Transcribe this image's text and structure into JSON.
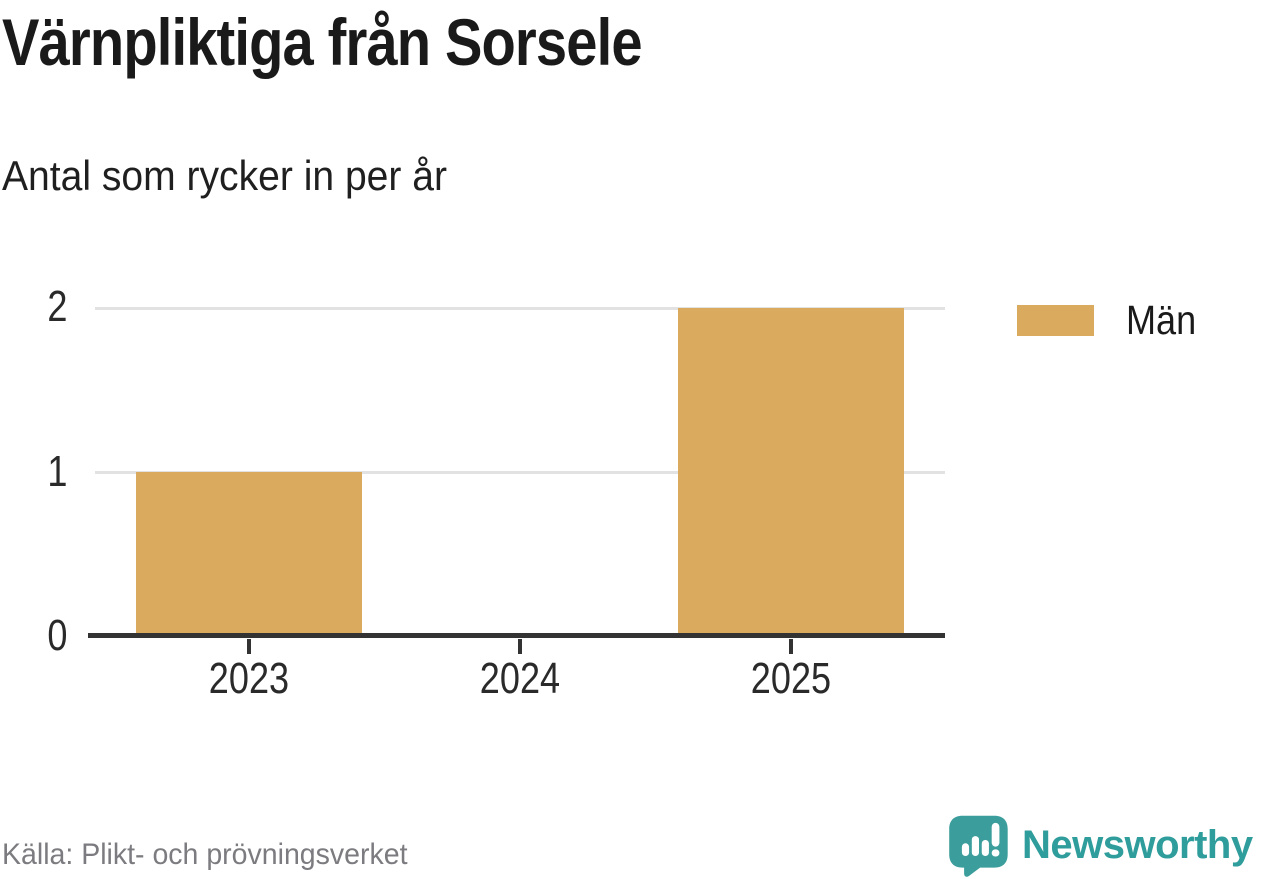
{
  "header": {
    "title": "Värnpliktiga från Sorsele",
    "subtitle": "Antal som rycker in per år"
  },
  "chart_data": {
    "type": "bar",
    "title": "Värnpliktiga från Sorsele",
    "subtitle": "Antal som rycker in per år",
    "categories": [
      "2023",
      "2024",
      "2025"
    ],
    "series": [
      {
        "name": "Män",
        "color": "#daab5e",
        "values": [
          1,
          0,
          2
        ]
      }
    ],
    "xlabel": "",
    "ylabel": "",
    "ylim": [
      0,
      2
    ],
    "yticks": [
      0,
      1,
      2
    ],
    "grid": true,
    "legend_position": "top-right"
  },
  "legend": {
    "items": [
      {
        "label": "Män",
        "color": "#daab5e"
      }
    ]
  },
  "footer": {
    "source": "Källa: Plikt- och prövningsverket",
    "brand": "Newsworthy"
  },
  "colors": {
    "bar": "#daab5e",
    "axis": "#333333",
    "grid": "#e2e2e2",
    "text": "#1a1a1a",
    "muted": "#7c7c80",
    "brand_teal": "#3b9e9c",
    "brand_text": "#2f9d9b"
  }
}
